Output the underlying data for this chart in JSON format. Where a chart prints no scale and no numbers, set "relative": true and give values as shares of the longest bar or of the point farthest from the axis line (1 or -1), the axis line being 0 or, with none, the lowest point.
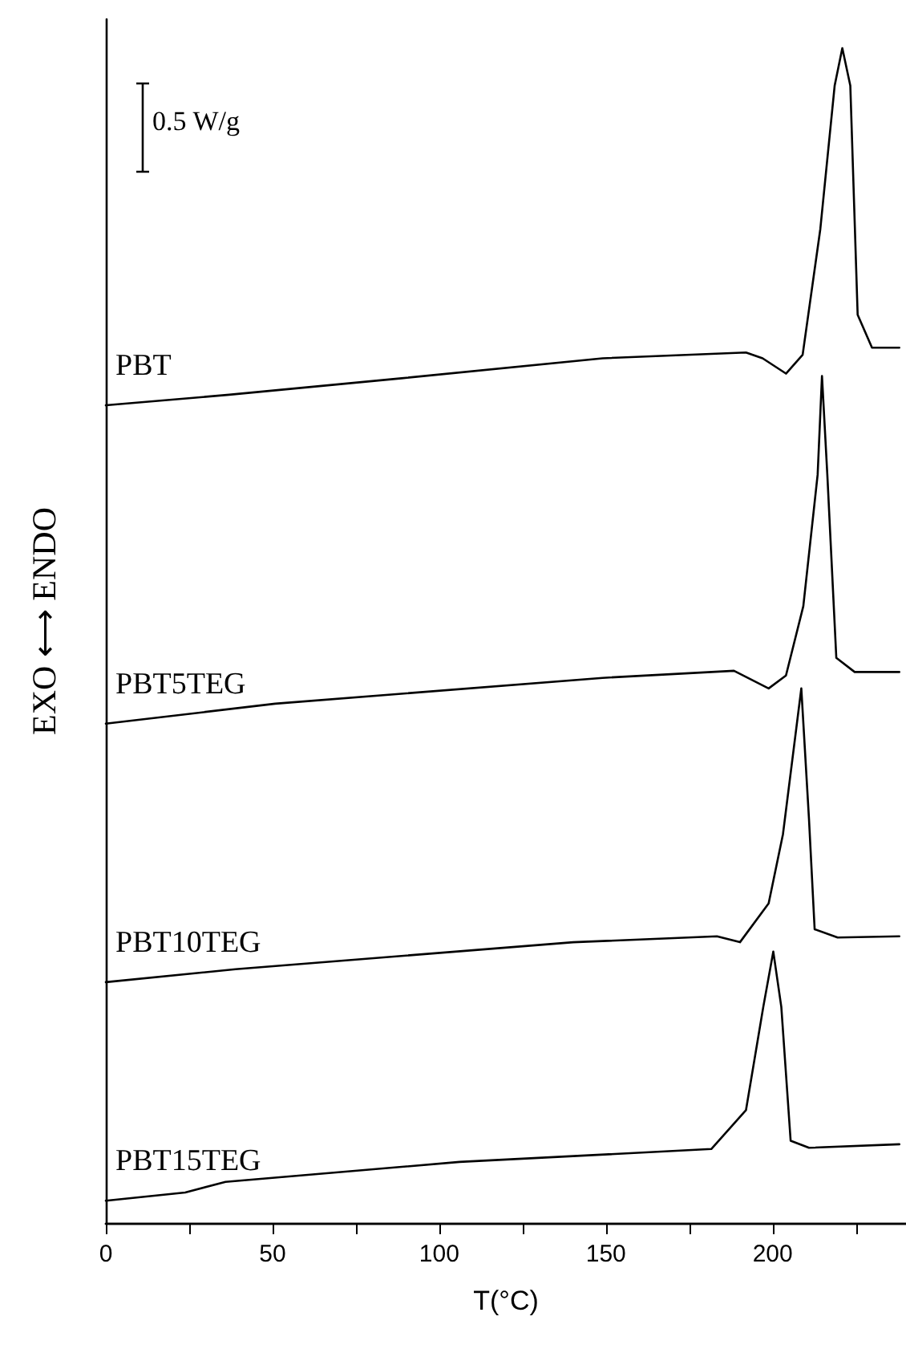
{
  "chart_data": {
    "type": "line",
    "relative": true,
    "xlabel": "T(°C)",
    "ylabel": "EXO ⟷ ENDO",
    "annotations": [
      "0.5 W/g"
    ],
    "xlim": [
      0,
      240
    ],
    "xticks": [
      0,
      {
        "value": 25,
        "label": null
      },
      50,
      {
        "value": 75,
        "label": null
      },
      100,
      {
        "value": 125,
        "label": null
      },
      150,
      {
        "value": 175,
        "label": null
      },
      200,
      {
        "value": 225,
        "label": null
      }
    ],
    "legend": false,
    "grid": false,
    "marker": "none",
    "line_style": "solid",
    "series": [
      {
        "name": "PBT",
        "color": "#000000",
        "x": [
          0,
          37,
          88.7,
          149,
          192,
          197,
          204,
          209,
          214.3,
          218.6,
          220.9,
          223.3,
          225.5,
          229.8,
          238
        ],
        "values": [
          0.696,
          0.705,
          0.719,
          0.736,
          0.741,
          0.736,
          0.723,
          0.739,
          0.846,
          0.968,
          1.0,
          0.968,
          0.773,
          0.745,
          0.745
        ]
      },
      {
        "name": "PBT5TEG",
        "color": "#000000",
        "x": [
          0,
          50.8,
          149,
          188.4,
          198.8,
          204,
          209.2,
          213.5,
          214.8,
          216.4,
          219.1,
          224.6,
          238
        ],
        "values": [
          0.425,
          0.442,
          0.464,
          0.47,
          0.455,
          0.466,
          0.525,
          0.637,
          0.721,
          0.637,
          0.481,
          0.469,
          0.469
        ]
      },
      {
        "name": "PBT10TEG",
        "color": "#000000",
        "x": [
          0,
          38.9,
          140.2,
          183.3,
          190.2,
          198.8,
          203.1,
          208.6,
          210.9,
          212.6,
          219.5,
          238
        ],
        "values": [
          0.205,
          0.216,
          0.239,
          0.244,
          0.239,
          0.272,
          0.331,
          0.455,
          0.344,
          0.25,
          0.243,
          0.244
        ]
      },
      {
        "name": "PBT15TEG",
        "color": "#000000",
        "x": [
          0,
          23.8,
          35.9,
          106.1,
          181.6,
          192,
          197.2,
          200.2,
          202.6,
          205.4,
          210.9,
          238
        ],
        "values": [
          0.019,
          0.026,
          0.035,
          0.052,
          0.063,
          0.096,
          0.184,
          0.231,
          0.184,
          0.07,
          0.064,
          0.067
        ]
      }
    ]
  }
}
